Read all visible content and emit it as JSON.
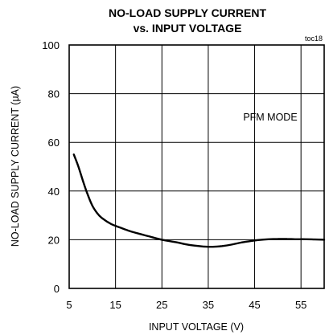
{
  "chart_data": {
    "type": "line",
    "title_line1": "NO-LOAD SUPPLY CURRENT",
    "title_line2": "vs. INPUT VOLTAGE",
    "tag": "toc18",
    "annotation": "PFM MODE",
    "xlabel": "INPUT VOLTAGE  (V)",
    "ylabel": "NO-LOAD SUPPLY CURRENT (µA)",
    "xlim": [
      5,
      60
    ],
    "ylim": [
      0,
      100
    ],
    "x_ticks": [
      5,
      15,
      25,
      35,
      45,
      55
    ],
    "y_ticks": [
      0,
      20,
      40,
      60,
      80,
      100
    ],
    "x_grid": [
      5,
      15,
      25,
      35,
      45,
      55,
      60
    ],
    "grid": true,
    "series": [
      {
        "x": [
          6,
          7,
          8,
          9,
          10,
          11,
          12,
          14,
          16,
          18,
          20,
          22,
          25,
          28,
          30,
          32,
          34,
          36,
          38,
          40,
          42,
          44,
          46,
          48,
          50,
          52,
          54,
          56,
          58,
          60
        ],
        "y": [
          55,
          50,
          44,
          38.5,
          34,
          31,
          29,
          26.5,
          25,
          23.6,
          22.5,
          21.5,
          20,
          19,
          18.2,
          17.6,
          17.2,
          17.1,
          17.4,
          18,
          18.8,
          19.4,
          19.9,
          20.2,
          20.3,
          20.3,
          20.2,
          20.2,
          20.1,
          20
        ]
      }
    ]
  }
}
